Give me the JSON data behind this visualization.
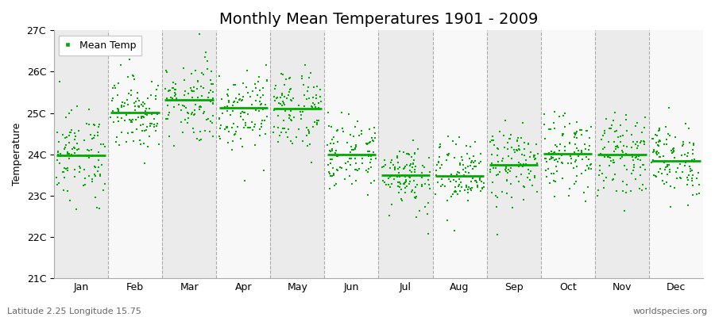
{
  "title": "Monthly Mean Temperatures 1901 - 2009",
  "ylabel": "Temperature",
  "footer_left": "Latitude 2.25 Longitude 15.75",
  "footer_right": "worldspecies.org",
  "legend_label": "Mean Temp",
  "ylim": [
    21.0,
    27.0
  ],
  "yticks": [
    21,
    22,
    23,
    24,
    25,
    26,
    27
  ],
  "ytick_labels": [
    "21C",
    "22C",
    "23C",
    "24C",
    "25C",
    "26C",
    "27C"
  ],
  "months": [
    "Jan",
    "Feb",
    "Mar",
    "Apr",
    "May",
    "Jun",
    "Jul",
    "Aug",
    "Sep",
    "Oct",
    "Nov",
    "Dec"
  ],
  "month_means": [
    23.98,
    25.01,
    25.32,
    25.12,
    25.1,
    24.0,
    23.5,
    23.48,
    23.75,
    24.02,
    24.0,
    23.85
  ],
  "month_stds": [
    0.55,
    0.45,
    0.5,
    0.5,
    0.5,
    0.42,
    0.42,
    0.42,
    0.45,
    0.45,
    0.45,
    0.45
  ],
  "scatter_color": "#00aa00",
  "mean_line_color": "#00aa00",
  "band_color_odd": "#ebebeb",
  "band_color_even": "#f8f8f8",
  "title_fontsize": 14,
  "axis_fontsize": 9,
  "tick_fontsize": 9,
  "legend_fontsize": 9,
  "dot_size": 4,
  "dot_marker": "s",
  "n_years": 109
}
